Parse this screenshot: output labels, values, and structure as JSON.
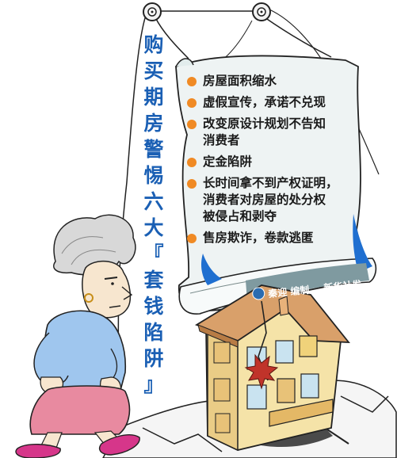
{
  "title_chars": [
    "购",
    "买",
    "期",
    "房",
    "警",
    "惕",
    "六",
    "大",
    "『",
    "套",
    "钱",
    "陷",
    "阱",
    "』"
  ],
  "items": [
    {
      "lines": [
        "房屋面积缩水"
      ]
    },
    {
      "lines": [
        "虚假宣传，承诺不兑现"
      ]
    },
    {
      "lines": [
        "改变原设计规划不告知",
        "消费者"
      ]
    },
    {
      "lines": [
        "定金陷阱"
      ]
    },
    {
      "lines": [
        "长时间拿不到产权证明，",
        "消费者对房屋的处分权",
        "被侵占和剥夺"
      ]
    },
    {
      "lines": [
        "售房欺诈，卷款逃匿"
      ]
    }
  ],
  "credit": {
    "author": "秦迎",
    "role": "编制",
    "agency": "新华社发"
  },
  "colors": {
    "title": "#1a5fb4",
    "bullet": "#f08a24",
    "scroll": "#eef3f3",
    "house_wall": "#f5e3a8",
    "roof": "#d9a06a"
  },
  "icons": [
    "pulley-icon",
    "pulley-icon",
    "maple-leaf-icon",
    "logo-icon"
  ]
}
